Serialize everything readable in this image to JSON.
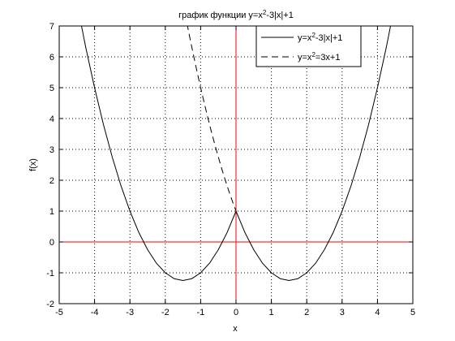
{
  "chart_data": {
    "type": "line",
    "title": {
      "pre": "график функции y=x",
      "sup": "2",
      "post": "-3|x|+1"
    },
    "xlabel": "x",
    "ylabel": "f(x)",
    "xlim": [
      -5,
      5
    ],
    "ylim": [
      -2,
      7
    ],
    "xticks": [
      -5,
      -4,
      -3,
      -2,
      -1,
      0,
      1,
      2,
      3,
      4,
      5
    ],
    "yticks": [
      -2,
      -1,
      0,
      1,
      2,
      3,
      4,
      5,
      6,
      7
    ],
    "grid": true,
    "legend_position": "top-right",
    "reference_lines": [
      {
        "orientation": "horizontal",
        "value": 0,
        "color": "#ff0000"
      },
      {
        "orientation": "vertical",
        "value": 0,
        "color": "#ff0000"
      }
    ],
    "series": [
      {
        "name": {
          "pre": "y=x",
          "sup": "2",
          "post": "-3|x|+1"
        },
        "color": "#000000",
        "dash": "solid",
        "x": [
          -4.5,
          -4.25,
          -4.0,
          -3.75,
          -3.5,
          -3.25,
          -3.0,
          -2.75,
          -2.5,
          -2.25,
          -2.0,
          -1.75,
          -1.5,
          -1.25,
          -1.0,
          -0.75,
          -0.5,
          -0.25,
          0.0,
          0.25,
          0.5,
          0.75,
          1.0,
          1.25,
          1.5,
          1.75,
          2.0,
          2.25,
          2.5,
          2.75,
          3.0,
          3.25,
          3.5,
          3.75,
          4.0,
          4.25,
          4.5
        ],
        "y": [
          7.75,
          6.31,
          5.0,
          3.81,
          2.75,
          1.81,
          1.0,
          0.31,
          -0.25,
          -0.69,
          -1.0,
          -1.19,
          -1.25,
          -1.19,
          -1.0,
          -0.69,
          -0.25,
          0.31,
          1.0,
          0.31,
          -0.25,
          -0.69,
          -1.0,
          -1.19,
          -1.25,
          -1.19,
          -1.0,
          -0.69,
          -0.25,
          0.31,
          1.0,
          1.81,
          2.75,
          3.81,
          5.0,
          6.31,
          7.75
        ]
      },
      {
        "name": {
          "pre": "y=x",
          "sup": "2",
          "post": "=3x+1"
        },
        "color": "#000000",
        "dash": "dashed",
        "x": [
          -1.5,
          -1.4,
          -1.3,
          -1.2,
          -1.1,
          -1.0,
          -0.9,
          -0.8,
          -0.7,
          -0.6,
          -0.5,
          -0.4,
          -0.3,
          -0.2,
          -0.1,
          0.0
        ],
        "y": [
          7.75,
          7.16,
          6.59,
          6.04,
          5.51,
          5.0,
          4.51,
          4.04,
          3.59,
          3.16,
          2.75,
          2.36,
          1.99,
          1.64,
          1.31,
          1.0
        ]
      }
    ]
  }
}
